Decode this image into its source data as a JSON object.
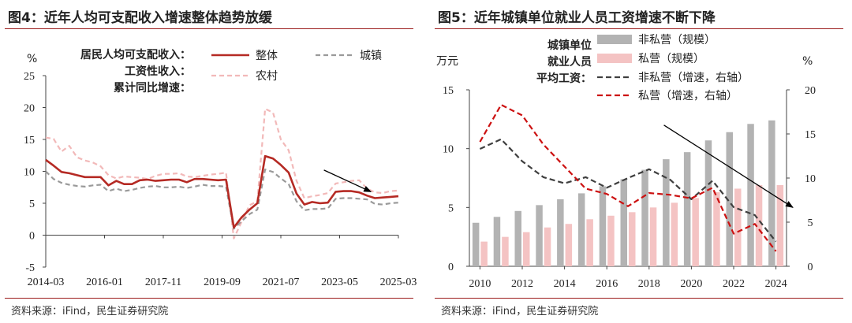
{
  "fig4": {
    "title": "图4：近年人均可支配收入增速整体趋势放缓",
    "source": "资料来源：iFind，民生证券研究院",
    "chart_data": {
      "type": "line",
      "unit": "%",
      "annotation": [
        "居民人均可支配收入：",
        "工资性收入：",
        "累计同比增速："
      ],
      "x_tick_labels": [
        "2014-03",
        "2016-01",
        "2017-11",
        "2019-09",
        "2021-07",
        "2023-05",
        "2025-03"
      ],
      "ylim": [
        -5,
        25
      ],
      "y_ticks": [
        -5,
        0,
        5,
        10,
        15,
        20,
        25
      ],
      "colors": {
        "整体": "#b52a24",
        "城镇": "#9a9a9a",
        "农村": "#f2b9b9"
      },
      "series": [
        {
          "name": "整体",
          "values": [
            11.8,
            10.9,
            9.9,
            9.7,
            9.4,
            9.1,
            9.1,
            9.1,
            7.8,
            8.5,
            8.0,
            8.0,
            8.6,
            8.7,
            8.5,
            8.6,
            8.7,
            8.7,
            8.3,
            8.8,
            8.8,
            8.7,
            8.6,
            8.7,
            1.2,
            2.8,
            4.0,
            5.0,
            12.4,
            12.0,
            11.0,
            9.8,
            6.5,
            4.8,
            5.2,
            5.0,
            5.1,
            6.8,
            6.9,
            6.9,
            6.7,
            6.2,
            5.8,
            5.9,
            6.0,
            6.1
          ]
        },
        {
          "name": "城镇",
          "values": [
            10.0,
            8.8,
            8.2,
            7.9,
            7.7,
            7.6,
            7.8,
            7.9,
            6.9,
            7.3,
            6.9,
            7.1,
            7.4,
            7.6,
            7.7,
            7.5,
            7.5,
            7.6,
            7.4,
            7.6,
            7.9,
            7.7,
            7.7,
            7.6,
            1.0,
            2.2,
            3.3,
            4.0,
            10.3,
            9.9,
            8.9,
            8.0,
            5.3,
            3.9,
            4.1,
            4.1,
            4.2,
            5.7,
            5.8,
            5.8,
            5.7,
            5.6,
            4.9,
            4.8,
            5.0,
            5.1
          ]
        },
        {
          "name": "农村",
          "values": [
            15.3,
            15.1,
            13.1,
            14.0,
            12.2,
            11.7,
            11.4,
            10.8,
            9.4,
            8.9,
            9.2,
            9.1,
            9.0,
            8.8,
            9.3,
            9.6,
            9.6,
            9.7,
            9.2,
            9.1,
            9.3,
            9.5,
            9.6,
            9.8,
            -0.5,
            2.1,
            4.7,
            5.3,
            19.8,
            19.2,
            15.0,
            13.3,
            8.5,
            5.8,
            6.1,
            6.3,
            6.6,
            8.1,
            8.3,
            8.5,
            8.6,
            7.3,
            6.7,
            6.6,
            6.9,
            7.0
          ]
        }
      ],
      "trend_arrow": {
        "from": [
          35.5,
          10.2
        ],
        "to": [
          41.5,
          6.8
        ]
      }
    }
  },
  "fig5": {
    "title": "图5：近年城镇单位就业人员工资增速不断下降",
    "source": "资料来源：iFind，民生证券研究院",
    "chart_data": {
      "type": "bar",
      "annotation": [
        "城镇单位",
        "就业人员",
        "平均工资："
      ],
      "categories": [
        "2010",
        "2011",
        "2012",
        "2013",
        "2014",
        "2015",
        "2016",
        "2017",
        "2018",
        "2019",
        "2020",
        "2021",
        "2022",
        "2023",
        "2024"
      ],
      "x_tick_labels": [
        "2010",
        "2012",
        "2014",
        "2016",
        "2018",
        "2020",
        "2022",
        "2024"
      ],
      "y_left": {
        "unit": "万元",
        "ylim": [
          0,
          15
        ],
        "ticks": [
          0,
          5,
          10,
          15
        ]
      },
      "y_right": {
        "unit": "%",
        "ylim": [
          0,
          20
        ],
        "ticks": [
          0,
          5,
          10,
          15,
          20
        ]
      },
      "colors": {
        "非私营（规模）": "#b3b3b3",
        "私营（规模）": "#f4c3c3",
        "非私营（增速，右轴）": "#3f3f3f",
        "私营（增速，右轴）": "#cc1111"
      },
      "series": [
        {
          "name": "非私营（规模）",
          "axis": "left",
          "values": [
            3.7,
            4.2,
            4.7,
            5.2,
            5.7,
            6.2,
            6.8,
            7.4,
            8.2,
            9.1,
            9.7,
            10.7,
            11.4,
            12.1,
            12.4
          ]
        },
        {
          "name": "私营（规模）",
          "axis": "left",
          "values": [
            2.1,
            2.5,
            2.9,
            3.3,
            3.6,
            4.0,
            4.3,
            4.6,
            5.0,
            5.4,
            5.8,
            6.3,
            6.6,
            6.9,
            6.9
          ]
        },
        {
          "name": "非私营（增速，右轴）",
          "axis": "right",
          "values": [
            13.3,
            14.4,
            11.9,
            10.1,
            9.4,
            10.1,
            8.9,
            10.0,
            11.0,
            9.8,
            7.6,
            9.7,
            6.7,
            5.8,
            2.8
          ]
        },
        {
          "name": "私营（增速，右轴）",
          "axis": "right",
          "values": [
            14.1,
            18.3,
            17.1,
            13.8,
            11.3,
            8.8,
            8.2,
            6.8,
            8.3,
            8.1,
            7.7,
            8.9,
            3.7,
            4.8,
            1.7
          ]
        }
      ],
      "trend_arrow": {
        "from": [
          2018.7,
          12.0
        ],
        "to": [
          2024.8,
          5.0
        ]
      }
    }
  }
}
